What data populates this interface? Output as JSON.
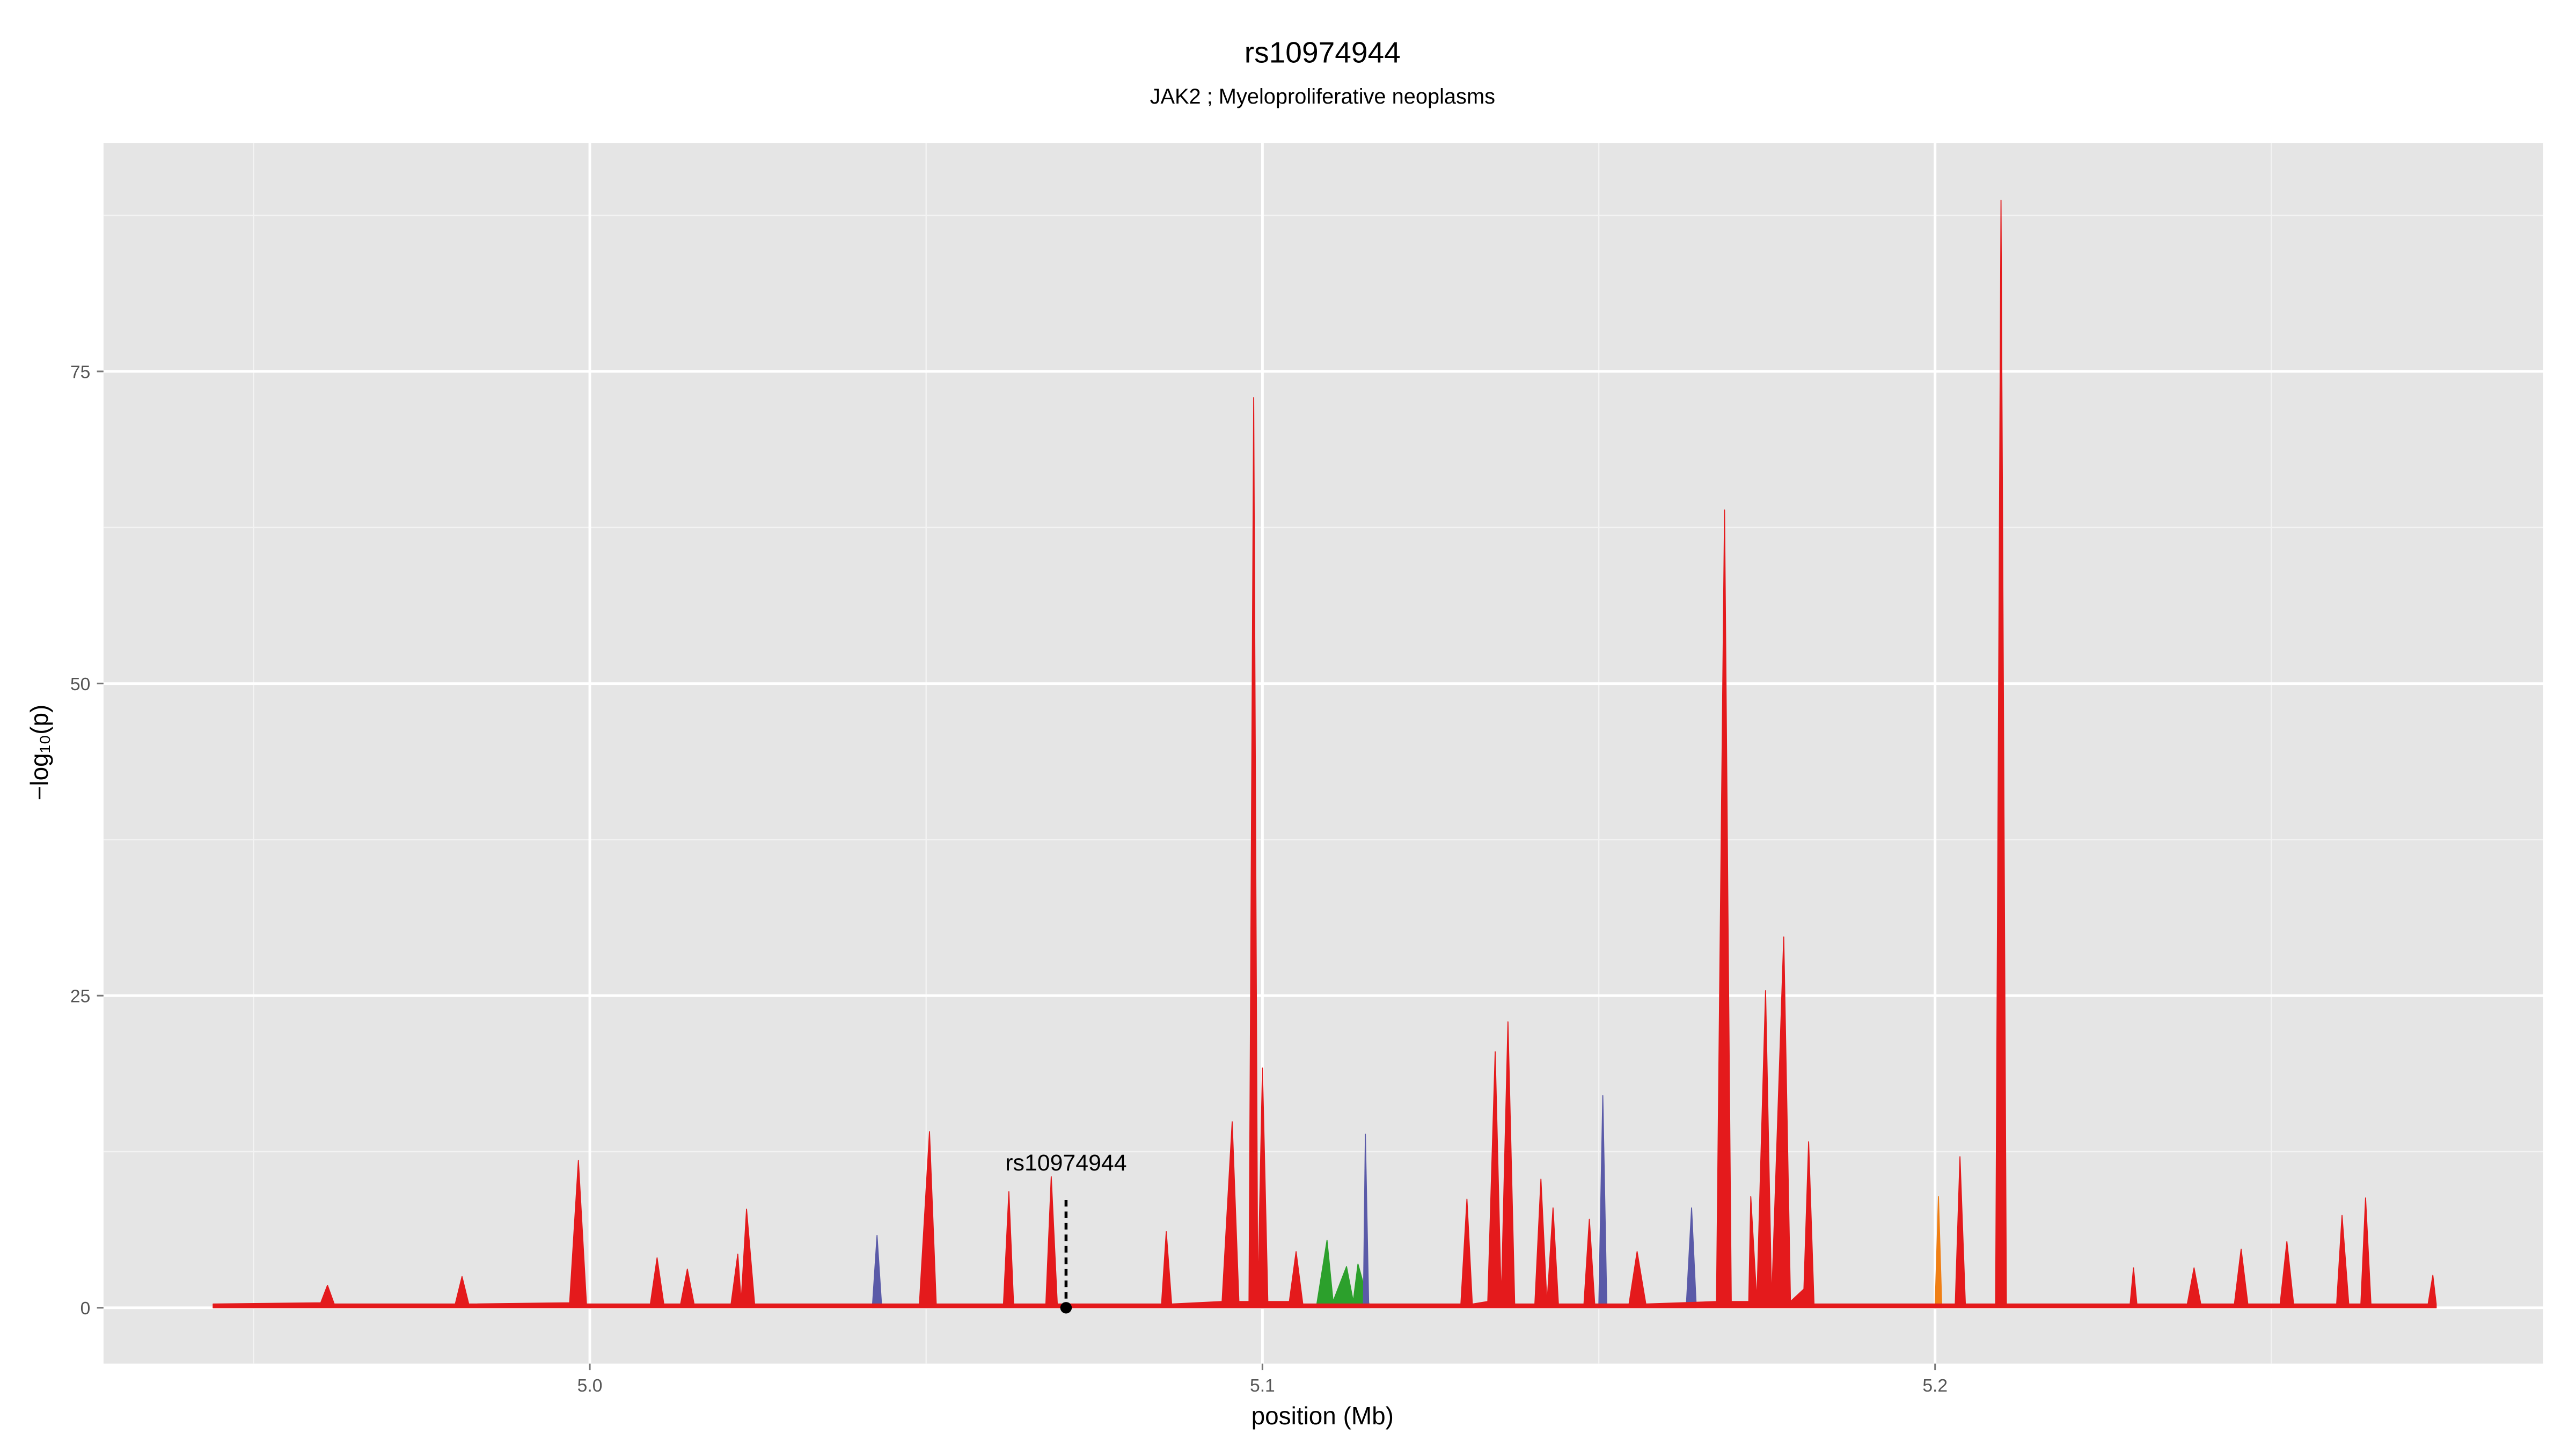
{
  "chart_data": {
    "type": "area",
    "title": "rs10974944",
    "subtitle": "JAK2 ; Myeloproliferative neoplasms",
    "xlabel": "position (Mb)",
    "ylabel": "−log₁₀(p)",
    "xlim": [
      4.9277,
      5.2904
    ],
    "ylim": [
      -4.47,
      93.3
    ],
    "xticks": [
      {
        "value": 5,
        "label": "5.0"
      },
      5.1,
      5.2
    ],
    "yticks": [
      0,
      25,
      50,
      75
    ],
    "x_minor": [
      4.95,
      5.05,
      5.15,
      5.25
    ],
    "y_minor": [
      12.5,
      37.5,
      62.5,
      87.5
    ],
    "grid": true,
    "background": "#e5e5e5",
    "annotation": {
      "text": "rs10974944",
      "x": 5.0708,
      "y": 0,
      "label_y": 11
    },
    "series": [
      {
        "color": "#2ca02c",
        "x": [
          5.108,
          5.1096,
          5.1105,
          5.1125,
          5.1135,
          5.1142,
          5.116
        ],
        "values": [
          0,
          5.4,
          0.5,
          3.3,
          0.5,
          3.5,
          0
        ]
      },
      {
        "color": "#5a5aa8",
        "x": [
          5.042,
          5.0427,
          5.0434,
          5.115,
          5.1153,
          5.1158,
          5.15,
          5.1506,
          5.1512,
          5.163,
          5.1638,
          5.1645
        ],
        "values": [
          0,
          5.8,
          0,
          0,
          13.9,
          0,
          0,
          17.0,
          0,
          0,
          8.0,
          0
        ]
      },
      {
        "color": "#f07f14",
        "x": [
          5.2,
          5.2005,
          5.201
        ],
        "values": [
          0,
          8.9,
          0
        ]
      },
      {
        "color": "#e41a1c",
        "x": [
          4.944,
          4.96,
          4.961,
          4.962,
          4.98,
          4.981,
          4.982,
          4.997,
          4.9983,
          4.9995,
          5.009,
          5.01,
          5.011,
          5.0135,
          5.0145,
          5.0155,
          5.021,
          5.022,
          5.0225,
          5.0233,
          5.0245,
          5.049,
          5.0505,
          5.0515,
          5.0615,
          5.0623,
          5.063,
          5.0678,
          5.0686,
          5.0695,
          5.085,
          5.0857,
          5.0865,
          5.094,
          5.0955,
          5.0965,
          5.098,
          5.0987,
          5.0993,
          5.1,
          5.1008,
          5.104,
          5.105,
          5.106,
          5.1295,
          5.1304,
          5.1312,
          5.1335,
          5.1346,
          5.1355,
          5.1365,
          5.1375,
          5.1405,
          5.1414,
          5.1423,
          5.1432,
          5.144,
          5.1478,
          5.1486,
          5.1494,
          5.1545,
          5.1557,
          5.157,
          5.1675,
          5.1687,
          5.1697,
          5.1723,
          5.1726,
          5.1735,
          5.1748,
          5.1757,
          5.1775,
          5.1785,
          5.1805,
          5.1812,
          5.182,
          5.203,
          5.2037,
          5.2045,
          5.209,
          5.2098,
          5.2106,
          5.229,
          5.2295,
          5.23,
          5.2375,
          5.2385,
          5.2395,
          5.2445,
          5.2455,
          5.2465,
          5.2513,
          5.2523,
          5.2533,
          5.2597,
          5.2605,
          5.2615,
          5.2633,
          5.264,
          5.2648,
          5.2733,
          5.274,
          5.2745
        ],
        "values": [
          0.3,
          0.4,
          1.8,
          0.3,
          0.3,
          2.5,
          0.3,
          0.4,
          11.8,
          0.3,
          0.3,
          4.0,
          0.3,
          0.3,
          3.1,
          0.3,
          0.3,
          4.3,
          0.5,
          7.9,
          0.3,
          0.3,
          14.1,
          0.3,
          0.3,
          9.3,
          0.3,
          0.3,
          10.5,
          0.3,
          0.3,
          6.1,
          0.3,
          0.5,
          14.9,
          0.5,
          0.5,
          72.9,
          0.5,
          19.2,
          0.5,
          0.5,
          4.5,
          0.3,
          0.3,
          8.7,
          0.3,
          0.5,
          20.5,
          0.5,
          22.9,
          0.3,
          0.3,
          10.3,
          0.3,
          8.0,
          0.3,
          0.3,
          7.1,
          0.3,
          0.3,
          4.5,
          0.3,
          0.5,
          63.9,
          0.5,
          0.5,
          8.9,
          0.5,
          25.4,
          0.5,
          29.7,
          0.5,
          1.5,
          13.3,
          0.3,
          0.3,
          12.1,
          0.3,
          0.3,
          88.7,
          0.3,
          0.3,
          3.2,
          0.3,
          0.3,
          3.2,
          0.3,
          0.3,
          4.7,
          0.3,
          0.3,
          5.3,
          0.3,
          0.3,
          7.4,
          0.3,
          0.3,
          8.8,
          0.3,
          0.3,
          2.6,
          0.3
        ]
      }
    ]
  }
}
